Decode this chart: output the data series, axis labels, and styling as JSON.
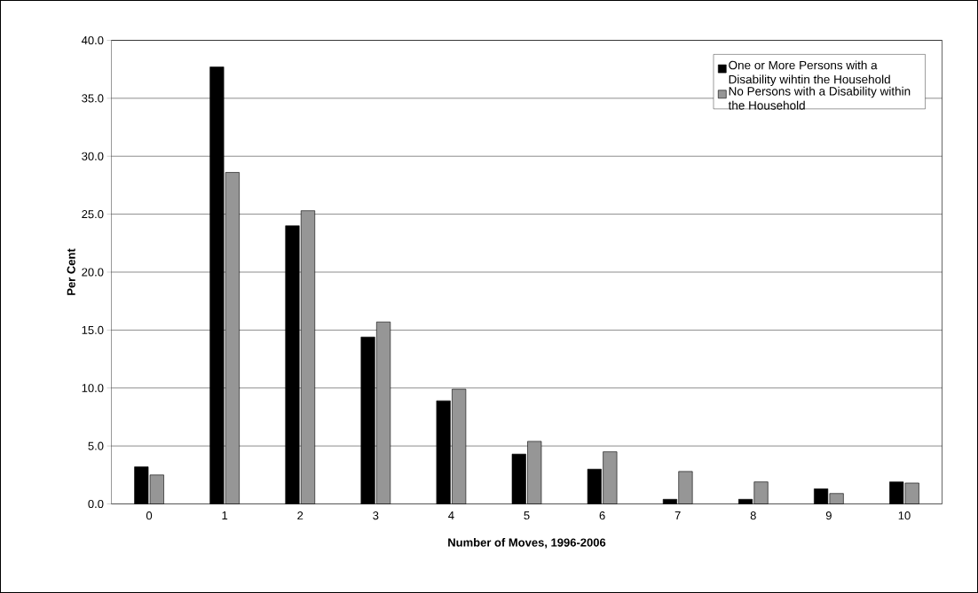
{
  "chart_data": {
    "type": "bar",
    "xlabel": "Number of Moves, 1996-2006",
    "ylabel": "Per Cent",
    "categories": [
      "0",
      "1",
      "2",
      "3",
      "4",
      "5",
      "6",
      "7",
      "8",
      "9",
      "10"
    ],
    "series": [
      {
        "name": "One or More Persons with a Disability wihtin the Household",
        "color": "#000000",
        "values": [
          3.2,
          37.7,
          24.0,
          14.4,
          8.9,
          4.3,
          3.0,
          0.4,
          0.4,
          1.3,
          1.9
        ]
      },
      {
        "name": "No Persons with a Disability within the Household",
        "color": "#969696",
        "values": [
          2.5,
          28.6,
          25.3,
          15.7,
          9.9,
          5.4,
          4.5,
          2.8,
          1.9,
          0.9,
          1.8
        ]
      }
    ],
    "ylim": [
      0,
      40
    ],
    "yticks": [
      {
        "value": 0,
        "label": "0.0"
      },
      {
        "value": 5,
        "label": "5.0"
      },
      {
        "value": 10,
        "label": "10.0"
      },
      {
        "value": 15,
        "label": "15.0"
      },
      {
        "value": 20,
        "label": "20.0"
      },
      {
        "value": 25,
        "label": "25.0"
      },
      {
        "value": 30,
        "label": "30.0"
      },
      {
        "value": 35,
        "label": "35.0"
      },
      {
        "value": 40,
        "label": "40.0"
      }
    ],
    "grid": "y",
    "legend": "top right"
  }
}
